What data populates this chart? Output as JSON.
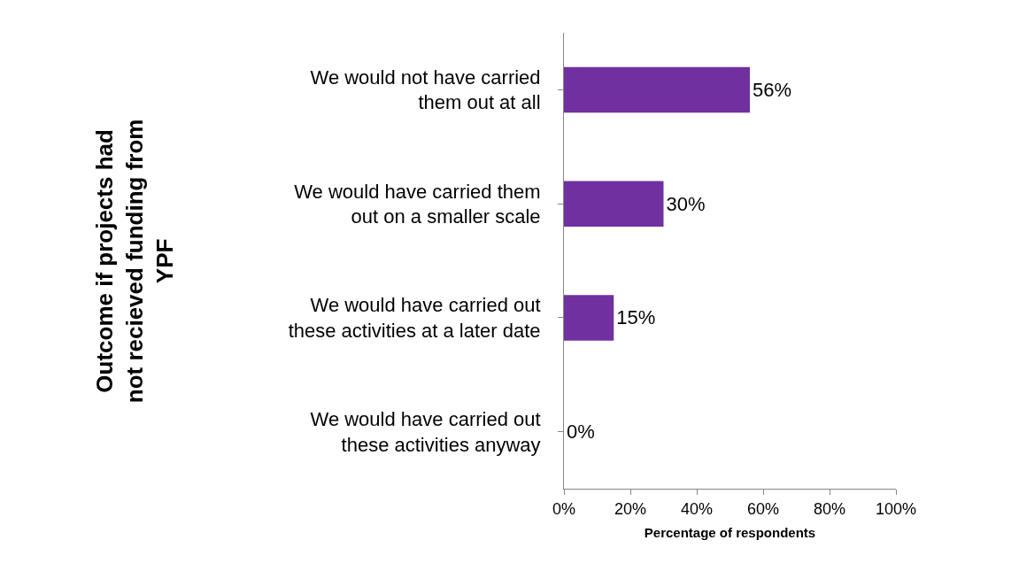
{
  "chart_data": {
    "type": "bar",
    "orientation": "horizontal",
    "ylabel": "Outcome if projects had\nnot recieved funding from\nYPF",
    "xlabel": "Percentage of respondents",
    "categories": [
      "We would not have carried\nthem out at all",
      "We would have carried them\nout on a smaller scale",
      "We would have carried out\nthese activities at a later date",
      "We would have carried out\nthese activities anyway"
    ],
    "values": [
      56,
      30,
      15,
      0
    ],
    "value_labels": [
      "56%",
      "30%",
      "15%",
      "0%"
    ],
    "color": "#7030a0",
    "xlim": [
      0,
      100
    ],
    "xticks": [
      {
        "value": 0,
        "label": "0%"
      },
      {
        "value": 20,
        "label": "20%"
      },
      {
        "value": 40,
        "label": "40%"
      },
      {
        "value": 60,
        "label": "60%"
      },
      {
        "value": 80,
        "label": "80%"
      },
      {
        "value": 100,
        "label": "100%"
      }
    ],
    "legend": false
  }
}
